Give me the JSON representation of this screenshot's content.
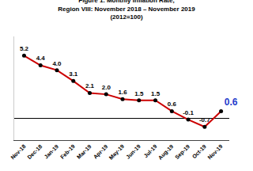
{
  "chart_data": {
    "type": "line",
    "title": "Figure 1. Monthly Inflation Rate,\nRegion VIII: November 2018 – November 2019\n(2012=100)",
    "categories": [
      "Nov-18",
      "Dec-18",
      "Jan-19",
      "Feb-19",
      "Mar-19",
      "Apr-19",
      "May-19",
      "Jun-19",
      "Jul-19",
      "Aug-19",
      "Sep-19",
      "Oct-19",
      "Nov-19"
    ],
    "values": [
      5.2,
      4.4,
      4.0,
      3.1,
      2.1,
      2.0,
      1.6,
      1.5,
      1.5,
      0.6,
      -0.1,
      -0.7,
      0.6
    ],
    "value_labels": [
      "5.2",
      "4.4",
      "4.0",
      "3.1",
      "2.1",
      "2.0",
      "1.6",
      "1.5",
      "1.5",
      "0.6",
      "-0.1",
      "-0.7",
      "0.6"
    ],
    "color": "#CC0000",
    "marker": "circle",
    "ylim": [
      -1.8,
      6.8
    ],
    "grid": false,
    "data_labels": true,
    "tick_labels": "x"
  }
}
